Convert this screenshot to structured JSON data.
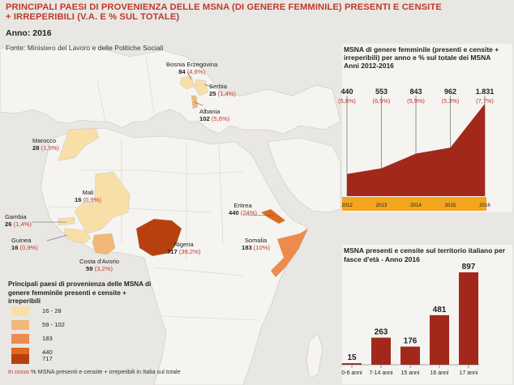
{
  "header": {
    "title_line1": "PRINCIPALI PAESI DI PROVENIENZA DELLE MSNA (DI GENERE FEMMINILE) PRESENTI E CENSITE",
    "title_line2": "+ IRREPERIBILI (V.A. E % SUL TOTALE)",
    "year": "Anno: 2016",
    "source": "Fonte: Ministero del Lavoro e delle Politiche Sociali"
  },
  "countries": [
    {
      "key": "bosnia",
      "name": "Bosnia Erzegovina",
      "value": "84",
      "pct": "(4,6%)"
    },
    {
      "key": "serbia",
      "name": "Serbia",
      "value": "25",
      "pct": "(1,4%)"
    },
    {
      "key": "albania",
      "name": "Albania",
      "value": "102",
      "pct": "(5,6%)"
    },
    {
      "key": "marocco",
      "name": "Marocco",
      "value": "28",
      "pct": "(1,5%)"
    },
    {
      "key": "mali",
      "name": "Mali",
      "value": "16",
      "pct": "(0,9%)"
    },
    {
      "key": "gambia",
      "name": "Gambia",
      "value": "26",
      "pct": "(1,4%)"
    },
    {
      "key": "guinea",
      "name": "Guinea",
      "value": "16",
      "pct": "(0,9%)"
    },
    {
      "key": "costa",
      "name": "Costa d'Avorio",
      "value": "59",
      "pct": "(3,2%)"
    },
    {
      "key": "nigeria",
      "name": "Nigeria",
      "value": "717",
      "pct": "(39,2%)"
    },
    {
      "key": "eritrea",
      "name": "Eritrea",
      "value": "440",
      "pct": "(24%)"
    },
    {
      "key": "somalia",
      "name": "Somalia",
      "value": "183",
      "pct": "(10%)"
    }
  ],
  "legend": {
    "title": "Principali paesi di provenienza delle MSNA di genere femminile presenti e censite + irreperibili",
    "items": [
      {
        "label": "16 - 28",
        "color": "#f8dfa8"
      },
      {
        "label": "59 - 102",
        "color": "#f1b877"
      },
      {
        "label": "183",
        "color": "#ee8a4c"
      },
      {
        "label": "440",
        "color": "#e0691f"
      },
      {
        "label": "717",
        "color": "#b7410e"
      }
    ],
    "note_red": "In rosso",
    "note_rest": " % MSNA presenti e censite + irreperibili in Italia sul totale"
  },
  "colors": {
    "accent": "#c0392b",
    "chart_area": "#a3281c",
    "year_band": "#f2a51d",
    "bar": "#a3281c"
  },
  "chart_data": [
    {
      "type": "area",
      "title": "MSNA di genere femminile (presenti e censite + irreperibili) per anno e % sul totale dei MSNA Anni 2012-2016",
      "categories": [
        "2012",
        "2013",
        "2014",
        "2015",
        "2016"
      ],
      "value_labels": [
        "440",
        "553",
        "843",
        "962",
        "1.831"
      ],
      "values": [
        440,
        553,
        843,
        962,
        1831
      ],
      "pct_labels": [
        "(5,8%)",
        "(6,5%)",
        "(5,9%)",
        "(5,3%)",
        "(7,7%)"
      ]
    },
    {
      "type": "bar",
      "title": "MSNA presenti e censite sul territorio italiano per fasce d'età - Anno 2016",
      "categories": [
        "0-6 anni",
        "7-14 anni",
        "15 anni",
        "16 anni",
        "17 anni"
      ],
      "values": [
        15,
        263,
        176,
        481,
        897
      ]
    }
  ]
}
